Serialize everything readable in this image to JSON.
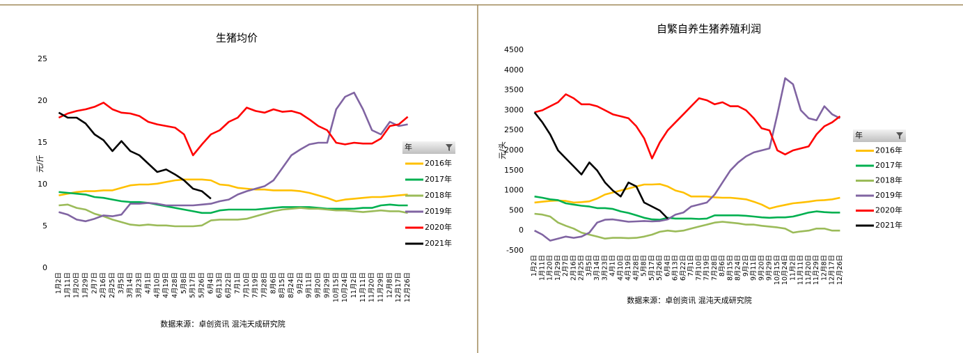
{
  "chart_data": [
    {
      "type": "line",
      "title": "生猪均价",
      "y_label": "元/斤",
      "source": "数据来源：卓创资讯 混沌天成研究院",
      "legend_title": "年",
      "categories": [
        "1月2日",
        "1月11日",
        "1月20日",
        "1月29日",
        "2月7日",
        "2月16日",
        "2月25日",
        "3月5日",
        "3月14日",
        "3月23日",
        "4月1日",
        "4月10日",
        "4月19日",
        "4月28日",
        "5月8日",
        "5月17日",
        "5月26日",
        "6月4日",
        "6月13日",
        "6月22日",
        "7月1日",
        "7月10日",
        "7月19日",
        "7月28日",
        "8月6日",
        "8月15日",
        "8月24日",
        "9月2日",
        "9月11日",
        "9月20日",
        "9月29日",
        "10月15日",
        "10月24日",
        "11月2日",
        "11月11日",
        "11月20日",
        "11月29日",
        "12月8日",
        "12月17日",
        "12月26日"
      ],
      "ylim": [
        0,
        25
      ],
      "yticks": [
        0,
        5,
        10,
        15,
        20,
        25
      ],
      "series": [
        {
          "name": "2016年",
          "color": "#ffc000",
          "values": [
            8.7,
            8.9,
            9.1,
            9.2,
            9.2,
            9.3,
            9.3,
            9.6,
            9.9,
            10.0,
            10.0,
            10.1,
            10.3,
            10.5,
            10.6,
            10.6,
            10.6,
            10.5,
            10.0,
            9.9,
            9.6,
            9.5,
            9.4,
            9.4,
            9.3,
            9.3,
            9.3,
            9.2,
            9.0,
            8.7,
            8.4,
            8.0,
            8.2,
            8.3,
            8.4,
            8.5,
            8.5,
            8.6,
            8.7,
            8.8
          ]
        },
        {
          "name": "2017年",
          "color": "#00b050",
          "values": [
            9.1,
            9.0,
            8.9,
            8.8,
            8.5,
            8.4,
            8.2,
            8.0,
            7.9,
            7.9,
            7.8,
            7.6,
            7.4,
            7.2,
            7.0,
            6.8,
            6.6,
            6.6,
            6.9,
            7.0,
            7.0,
            7.0,
            7.0,
            7.1,
            7.2,
            7.3,
            7.3,
            7.3,
            7.3,
            7.2,
            7.1,
            7.1,
            7.1,
            7.1,
            7.2,
            7.2,
            7.5,
            7.6,
            7.5,
            7.5
          ]
        },
        {
          "name": "2018年",
          "color": "#9bbb59",
          "values": [
            7.5,
            7.6,
            7.2,
            7.0,
            6.5,
            6.2,
            5.8,
            5.5,
            5.2,
            5.1,
            5.2,
            5.1,
            5.1,
            5.0,
            5.0,
            5.0,
            5.1,
            5.7,
            5.8,
            5.8,
            5.8,
            5.9,
            6.2,
            6.5,
            6.8,
            7.0,
            7.1,
            7.2,
            7.1,
            7.1,
            7.0,
            6.9,
            6.9,
            6.8,
            6.7,
            6.8,
            6.9,
            6.8,
            6.8,
            6.6
          ]
        },
        {
          "name": "2019年",
          "color": "#8064a2",
          "values": [
            6.7,
            6.4,
            5.8,
            5.6,
            5.9,
            6.3,
            6.2,
            6.4,
            7.7,
            7.7,
            7.8,
            7.7,
            7.5,
            7.5,
            7.5,
            7.5,
            7.6,
            7.7,
            8.0,
            8.2,
            8.8,
            9.2,
            9.5,
            9.8,
            10.5,
            12.0,
            13.5,
            14.2,
            14.8,
            15.0,
            15.0,
            19.0,
            20.5,
            21.0,
            19.0,
            16.5,
            16.0,
            17.5,
            17.0,
            17.2
          ]
        },
        {
          "name": "2020年",
          "color": "#ff0000",
          "values": [
            18.0,
            18.5,
            18.8,
            19.0,
            19.3,
            19.8,
            19.0,
            18.6,
            18.5,
            18.2,
            17.5,
            17.2,
            17.0,
            16.8,
            16.0,
            13.5,
            14.8,
            16.0,
            16.5,
            17.5,
            18.0,
            19.2,
            18.8,
            18.6,
            19.0,
            18.7,
            18.8,
            18.5,
            17.8,
            17.0,
            16.5,
            15.0,
            14.8,
            15.0,
            14.9,
            14.9,
            15.5,
            17.0,
            17.2,
            18.1
          ]
        },
        {
          "name": "2021年",
          "color": "#000000",
          "values": [
            18.6,
            18.0,
            18.0,
            17.3,
            16.0,
            15.3,
            14.0,
            15.2,
            14.0,
            13.5,
            12.5,
            11.5,
            11.8,
            11.2,
            10.5,
            9.5,
            9.2,
            8.3,
            null,
            null,
            null,
            null,
            null,
            null,
            null,
            null,
            null,
            null,
            null,
            null,
            null,
            null,
            null,
            null,
            null,
            null,
            null,
            null,
            null,
            null
          ]
        }
      ]
    },
    {
      "type": "line",
      "title": "自繁自养生猪养殖利润",
      "y_label": "元/头",
      "source": "数据来源：卓创资讯 混沌天成研究院",
      "legend_title": "年",
      "categories": [
        "1月2日",
        "1月11日",
        "1月20日",
        "1月29日",
        "2月7日",
        "2月16日",
        "2月25日",
        "3月5日",
        "3月14日",
        "3月23日",
        "4月1日",
        "4月10日",
        "4月19日",
        "4月28日",
        "5月8日",
        "5月17日",
        "5月26日",
        "6月4日",
        "6月13日",
        "6月22日",
        "7月1日",
        "7月10日",
        "7月19日",
        "7月28日",
        "8月6日",
        "8月15日",
        "8月24日",
        "9月2日",
        "9月11日",
        "9月20日",
        "9月29日",
        "10月15日",
        "10月24日",
        "11月2日",
        "11月11日",
        "11月20日",
        "11月29日",
        "12月8日",
        "12月17日",
        "12月26日"
      ],
      "ylim": [
        -500,
        4500
      ],
      "yticks": [
        -500,
        0,
        500,
        1000,
        1500,
        2000,
        2500,
        3000,
        3500,
        4000,
        4500
      ],
      "series": [
        {
          "name": "2016年",
          "color": "#ffc000",
          "values": [
            700,
            720,
            740,
            750,
            740,
            700,
            710,
            730,
            800,
            900,
            950,
            1000,
            1050,
            1100,
            1150,
            1150,
            1160,
            1100,
            1000,
            950,
            850,
            850,
            850,
            830,
            820,
            820,
            800,
            780,
            720,
            650,
            550,
            600,
            640,
            680,
            700,
            720,
            750,
            760,
            780,
            820
          ]
        },
        {
          "name": "2017年",
          "color": "#00b050",
          "values": [
            850,
            820,
            780,
            760,
            680,
            650,
            620,
            600,
            560,
            560,
            540,
            480,
            440,
            380,
            320,
            280,
            270,
            320,
            300,
            300,
            300,
            290,
            300,
            380,
            380,
            380,
            380,
            370,
            350,
            330,
            320,
            330,
            330,
            350,
            400,
            450,
            480,
            460,
            450,
            450
          ]
        },
        {
          "name": "2018年",
          "color": "#9bbb59",
          "values": [
            420,
            400,
            350,
            200,
            120,
            50,
            -50,
            -100,
            -150,
            -200,
            -180,
            -180,
            -190,
            -180,
            -150,
            -100,
            -30,
            0,
            -20,
            0,
            50,
            100,
            150,
            200,
            220,
            200,
            180,
            150,
            150,
            120,
            100,
            80,
            50,
            -50,
            -20,
            0,
            50,
            50,
            0,
            0
          ]
        },
        {
          "name": "2019年",
          "color": "#8064a2",
          "values": [
            0,
            -100,
            -250,
            -200,
            -150,
            -180,
            -150,
            -50,
            200,
            270,
            280,
            250,
            220,
            230,
            240,
            230,
            240,
            280,
            400,
            450,
            600,
            650,
            700,
            900,
            1200,
            1500,
            1700,
            1850,
            1950,
            2000,
            2050,
            2900,
            3800,
            3650,
            3000,
            2800,
            2750,
            3100,
            2900,
            2800
          ]
        },
        {
          "name": "2020年",
          "color": "#ff0000",
          "values": [
            2950,
            3000,
            3100,
            3200,
            3400,
            3300,
            3150,
            3150,
            3100,
            3000,
            2900,
            2850,
            2800,
            2600,
            2300,
            1800,
            2200,
            2500,
            2700,
            2900,
            3100,
            3300,
            3250,
            3150,
            3200,
            3100,
            3100,
            3000,
            2800,
            2550,
            2500,
            2000,
            1900,
            2000,
            2050,
            2100,
            2400,
            2600,
            2700,
            2850
          ]
        },
        {
          "name": "2021年",
          "color": "#000000",
          "values": [
            2950,
            2700,
            2400,
            2000,
            1800,
            1600,
            1400,
            1700,
            1500,
            1200,
            1000,
            850,
            1200,
            1100,
            700,
            600,
            500,
            300,
            null,
            null,
            null,
            null,
            null,
            null,
            null,
            null,
            null,
            null,
            null,
            null,
            null,
            null,
            null,
            null,
            null,
            null,
            null,
            null,
            null,
            null
          ]
        }
      ]
    }
  ]
}
